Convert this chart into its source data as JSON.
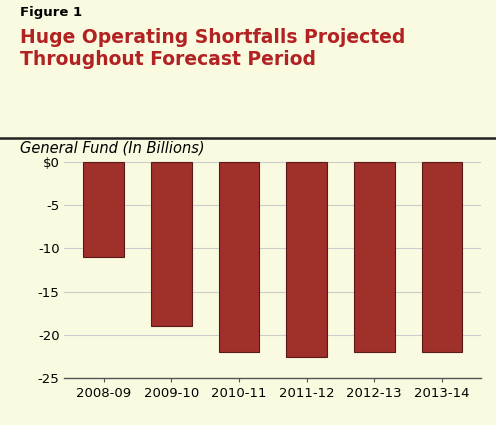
{
  "figure_label": "Figure 1",
  "title": "Huge Operating Shortfalls Projected\nThroughout Forecast Period",
  "subtitle": "General Fund (In Billions)",
  "categories": [
    "2008-09",
    "2009-10",
    "2010-11",
    "2011-12",
    "2012-13",
    "2013-14"
  ],
  "values": [
    -11.0,
    -19.0,
    -22.0,
    -22.5,
    -22.0,
    -22.0
  ],
  "bar_color": "#A0302A",
  "bar_edgecolor": "#5A1A1A",
  "background_color": "#FAFAE0",
  "title_color": "#B22222",
  "figure_label_color": "#000000",
  "subtitle_color": "#000000",
  "ylim": [
    -25,
    0.5
  ],
  "yticks": [
    0,
    -5,
    -10,
    -15,
    -20,
    -25
  ],
  "ytick_labels": [
    "$0",
    "-5",
    "-10",
    "-15",
    "-20",
    "-25"
  ],
  "grid_color": "#CCCCCC",
  "axis_linecolor": "#555555",
  "bar_width": 0.6,
  "title_fontsize": 13.5,
  "subtitle_fontsize": 10.5,
  "figure_label_fontsize": 9.5,
  "tick_fontsize": 9.5,
  "separator_line_color": "#222222"
}
